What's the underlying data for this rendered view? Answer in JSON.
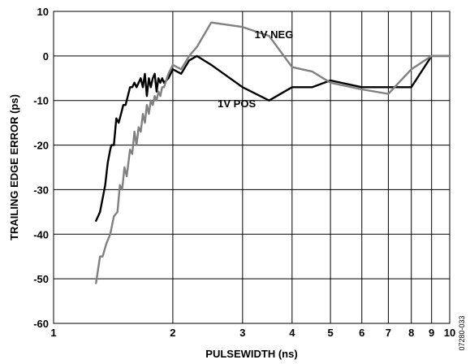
{
  "chart_data": {
    "type": "line",
    "xlabel": "PULSEWIDTH (ns)",
    "ylabel": "TRAILING EDGE ERROR (ps)",
    "xscale": "log",
    "xlim": [
      1,
      10
    ],
    "ylim": [
      -60,
      10
    ],
    "xticks": [
      1,
      2,
      3,
      4,
      5,
      6,
      7,
      8,
      9,
      10
    ],
    "yticks": [
      10,
      0,
      -10,
      -20,
      -30,
      -40,
      -50,
      -60
    ],
    "grid": true,
    "figure_id": "07280-033",
    "series": [
      {
        "name": "1V POS",
        "color": "#000000",
        "x": [
          1.28,
          1.31,
          1.33,
          1.35,
          1.37,
          1.39,
          1.4,
          1.42,
          1.44,
          1.46,
          1.48,
          1.5,
          1.52,
          1.54,
          1.56,
          1.58,
          1.6,
          1.62,
          1.64,
          1.66,
          1.68,
          1.7,
          1.72,
          1.74,
          1.76,
          1.78,
          1.8,
          1.82,
          1.84,
          1.86,
          1.88,
          1.9,
          1.95,
          2.0,
          2.1,
          2.2,
          2.3,
          2.5,
          3.0,
          3.5,
          4.0,
          4.5,
          5.0,
          6.0,
          7.0,
          8.0,
          9.0,
          10.0
        ],
        "y": [
          -37,
          -35,
          -32,
          -29,
          -24,
          -21,
          -20,
          -20,
          -14,
          -15,
          -13,
          -11,
          -11,
          -9,
          -7,
          -7,
          -6,
          -7,
          -6,
          -5,
          -7,
          -4,
          -9,
          -5,
          -7,
          -5,
          -4,
          -8,
          -5,
          -6,
          -5,
          -6,
          -5,
          -3,
          -4,
          -1,
          0,
          -2,
          -7,
          -10,
          -7,
          -7,
          -5.5,
          -7,
          -7,
          -7,
          0,
          0
        ]
      },
      {
        "name": "1V NEG",
        "color": "#808080",
        "x": [
          1.28,
          1.31,
          1.33,
          1.36,
          1.39,
          1.42,
          1.45,
          1.47,
          1.49,
          1.51,
          1.53,
          1.56,
          1.58,
          1.6,
          1.62,
          1.64,
          1.66,
          1.68,
          1.7,
          1.72,
          1.74,
          1.76,
          1.78,
          1.8,
          1.82,
          1.84,
          1.86,
          1.88,
          1.9,
          1.95,
          2.0,
          2.1,
          2.2,
          2.3,
          2.5,
          3.0,
          3.5,
          4.0,
          4.5,
          5.0,
          6.0,
          7.0,
          8.0,
          9.0,
          10.0
        ],
        "y": [
          -51,
          -45,
          -45,
          -42,
          -40,
          -36,
          -35,
          -29,
          -30,
          -25,
          -27,
          -21,
          -22,
          -17,
          -20,
          -16,
          -17,
          -13,
          -15,
          -11,
          -13,
          -10,
          -11,
          -9,
          -10,
          -8,
          -9,
          -7,
          -7,
          -4,
          -2,
          -3,
          0,
          2,
          7.5,
          6.5,
          4.5,
          -2.5,
          -3.5,
          -6,
          -7.5,
          -8.5,
          -3,
          0,
          0
        ]
      }
    ],
    "annotations": [
      {
        "text": "1V NEG",
        "x": 3.6,
        "y": 4
      },
      {
        "text": "1V POS",
        "x": 2.9,
        "y": -11.5
      }
    ]
  }
}
